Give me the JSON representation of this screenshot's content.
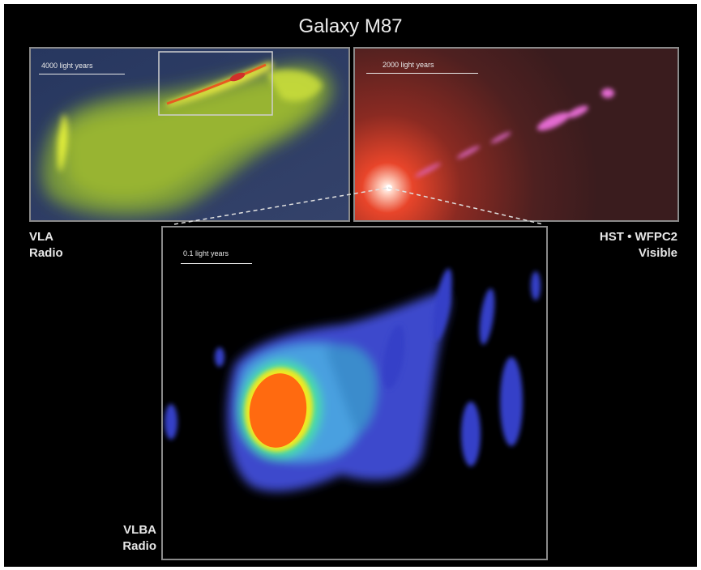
{
  "title": "Galaxy M87",
  "panels": {
    "vla": {
      "scale_text": "4000 light years",
      "instrument": "VLA",
      "band": "Radio"
    },
    "hst": {
      "scale_text": "2000 light years",
      "instrument": "HST • WFPC2",
      "band": "Visible"
    },
    "vlba": {
      "scale_text": "0.1 light years",
      "instrument": "VLBA",
      "band": "Radio"
    }
  },
  "colors": {
    "background": "#000000",
    "panel_border": "#8a8a8a",
    "radio_low": "#2a3f6a",
    "radio_high": "#d8e830",
    "visible_core": "#ff5a30",
    "jet_magenta": "#e060c8",
    "vlba_core": "#ff6a10",
    "vlba_outer": "#3a4ad0"
  }
}
